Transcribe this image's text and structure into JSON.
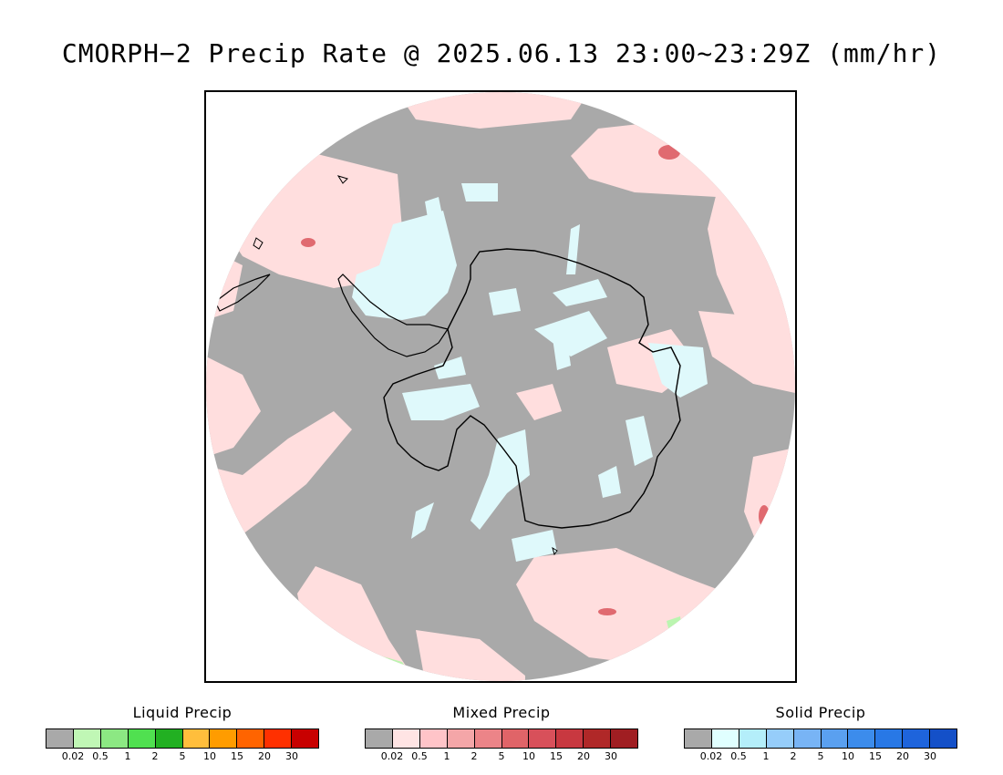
{
  "title": "CMORPH−2 Precip Rate @ 2025.06.13 23:00~23:29Z (mm/hr)",
  "map": {
    "projection": "south-polar-stereographic",
    "colors": {
      "background": "#a9a9a9",
      "mixed_light": "#ffdede",
      "mixed_medium": "#f4a6a8",
      "mixed_strong": "#e06a70",
      "solid_light": "#dff9fb",
      "liquid_light": "#bbf5b0",
      "coastline": "#000000"
    }
  },
  "legends": [
    {
      "title": "Liquid Precip",
      "colors": [
        "#a9a9a9",
        "#c0f7b5",
        "#8ce883",
        "#50e050",
        "#22b022",
        "#ffbe3c",
        "#ff9c00",
        "#ff6400",
        "#ff3000",
        "#c80000"
      ],
      "ticks": [
        "0.02",
        "0.5",
        "1",
        "2",
        "5",
        "10",
        "15",
        "20",
        "30"
      ]
    },
    {
      "title": "Mixed Precip",
      "colors": [
        "#a9a9a9",
        "#ffe4e4",
        "#ffc4c8",
        "#f4a6a8",
        "#ec8488",
        "#e06468",
        "#d8505a",
        "#c83840",
        "#b02828",
        "#a01e22"
      ],
      "ticks": [
        "0.02",
        "0.5",
        "1",
        "2",
        "5",
        "10",
        "15",
        "20",
        "30"
      ]
    },
    {
      "title": "Solid Precip",
      "colors": [
        "#a9a9a9",
        "#e0ffff",
        "#b4eefa",
        "#96cdfa",
        "#78b4f5",
        "#5aa0f0",
        "#3c8cec",
        "#2878e6",
        "#1e64dc",
        "#1450c8"
      ],
      "ticks": [
        "0.02",
        "0.5",
        "1",
        "2",
        "5",
        "10",
        "15",
        "20",
        "30"
      ]
    }
  ]
}
